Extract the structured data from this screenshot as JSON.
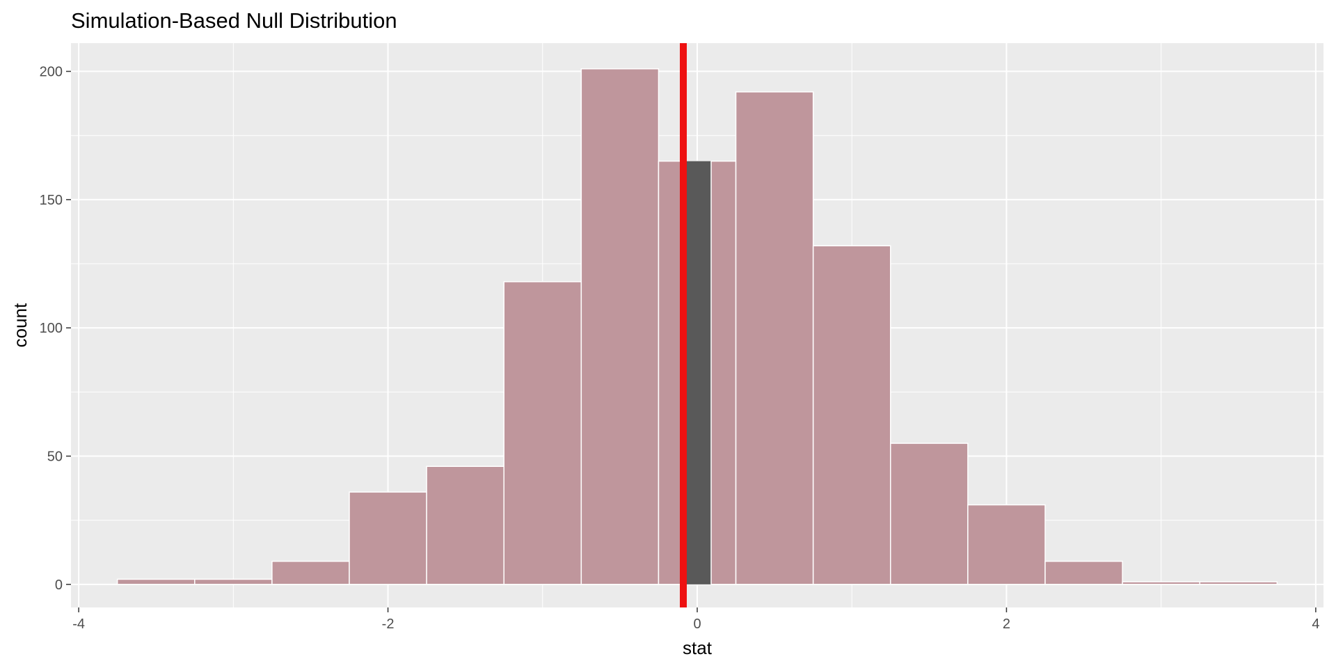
{
  "chart_data": {
    "type": "bar",
    "title": "Simulation-Based Null Distribution",
    "xlabel": "stat",
    "ylabel": "count",
    "xlim": [
      -4.05,
      4.05
    ],
    "ylim": [
      -9,
      211
    ],
    "x_ticks": [
      -4,
      -2,
      0,
      2,
      4
    ],
    "x_tick_labels": [
      "-4",
      "-2",
      "0",
      "2",
      "4"
    ],
    "y_ticks": [
      0,
      50,
      100,
      150,
      200
    ],
    "y_tick_labels": [
      "0",
      "50",
      "100",
      "150",
      "200"
    ],
    "grid": true,
    "legend": "none",
    "bin_width": 0.5,
    "bins": [
      {
        "x0": -3.75,
        "x1": -3.25,
        "count": 2
      },
      {
        "x0": -3.25,
        "x1": -2.75,
        "count": 2
      },
      {
        "x0": -2.75,
        "x1": -2.25,
        "count": 9
      },
      {
        "x0": -2.25,
        "x1": -1.75,
        "count": 36
      },
      {
        "x0": -1.75,
        "x1": -1.25,
        "count": 46
      },
      {
        "x0": -1.25,
        "x1": -0.75,
        "count": 118
      },
      {
        "x0": -0.75,
        "x1": -0.25,
        "count": 201
      },
      {
        "x0": -0.25,
        "x1": 0.25,
        "count": 165
      },
      {
        "x0": 0.25,
        "x1": 0.75,
        "count": 192
      },
      {
        "x0": 0.75,
        "x1": 1.25,
        "count": 132
      },
      {
        "x0": 1.25,
        "x1": 1.75,
        "count": 55
      },
      {
        "x0": 1.75,
        "x1": 2.25,
        "count": 31
      },
      {
        "x0": 2.25,
        "x1": 2.75,
        "count": 9
      },
      {
        "x0": 2.75,
        "x1": 3.25,
        "count": 1
      },
      {
        "x0": 3.25,
        "x1": 3.75,
        "count": 1
      }
    ],
    "observed_stat": -0.09,
    "shaded_region": {
      "from": -0.09,
      "to": 0.09
    },
    "colors": {
      "panel_background": "#ebebeb",
      "grid": "#ffffff",
      "bar_fill": "#bf969c",
      "bar_outline": "#ffffff",
      "shaded_fill": "#595959",
      "observed_line": "#ee1111"
    }
  }
}
